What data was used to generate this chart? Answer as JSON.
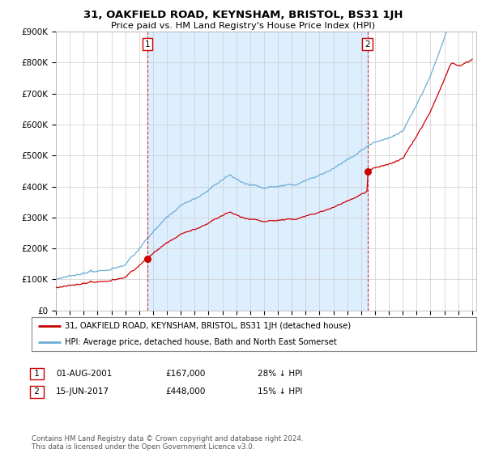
{
  "title": "31, OAKFIELD ROAD, KEYNSHAM, BRISTOL, BS31 1JH",
  "subtitle": "Price paid vs. HM Land Registry's House Price Index (HPI)",
  "legend_line1": "31, OAKFIELD ROAD, KEYNSHAM, BRISTOL, BS31 1JH (detached house)",
  "legend_line2": "HPI: Average price, detached house, Bath and North East Somerset",
  "annotation1_label": "1",
  "annotation1_date": "01-AUG-2001",
  "annotation1_price": "£167,000",
  "annotation1_hpi": "28% ↓ HPI",
  "annotation2_label": "2",
  "annotation2_date": "15-JUN-2017",
  "annotation2_price": "£448,000",
  "annotation2_hpi": "15% ↓ HPI",
  "footer": "Contains HM Land Registry data © Crown copyright and database right 2024.\nThis data is licensed under the Open Government Licence v3.0.",
  "hpi_color": "#6aaed6",
  "price_color": "#cc0000",
  "dashed_color": "#cc0000",
  "shade_color": "#ddeeff",
  "ylim": [
    0,
    900000
  ],
  "yticks": [
    0,
    100000,
    200000,
    300000,
    400000,
    500000,
    600000,
    700000,
    800000,
    900000
  ],
  "ytick_labels": [
    "£0",
    "£100K",
    "£200K",
    "£300K",
    "£400K",
    "£500K",
    "£600K",
    "£700K",
    "£800K",
    "£900K"
  ],
  "sale1_year": 2001.583,
  "sale1_price": 167000,
  "sale2_year": 2017.458,
  "sale2_price": 448000,
  "xmin": 1995,
  "xmax": 2025.3
}
